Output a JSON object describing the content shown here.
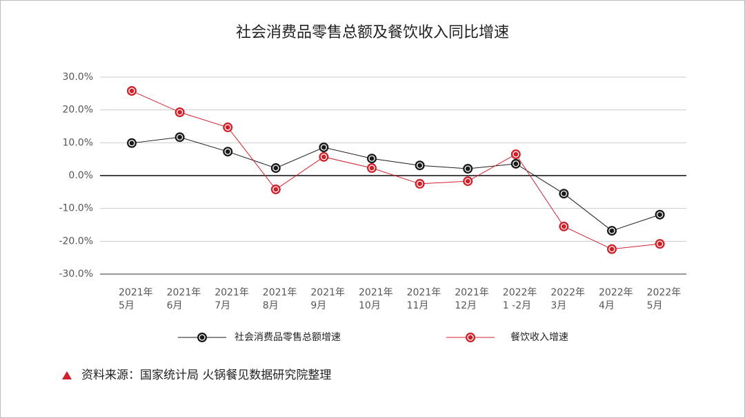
{
  "chart_data": {
    "type": "line",
    "title": "社会消费品零售总额及餐饮收入同比增速",
    "categories": [
      [
        "2021年",
        "5月"
      ],
      [
        "2021年",
        "6月"
      ],
      [
        "2021年",
        "7月"
      ],
      [
        "2021年",
        "8月"
      ],
      [
        "2021年",
        "9月"
      ],
      [
        "2021年",
        "10月"
      ],
      [
        "2021年",
        "11月"
      ],
      [
        "2021年",
        "12月"
      ],
      [
        "2022年",
        "1 -2月"
      ],
      [
        "2022年",
        "3月"
      ],
      [
        "2022年",
        "4月"
      ],
      [
        "2022年",
        "5月"
      ]
    ],
    "series": [
      {
        "name": "社会消费品零售总额增速",
        "color": "#1a1a1a",
        "values": [
          9.9,
          11.7,
          7.3,
          2.3,
          8.6,
          5.2,
          3.1,
          2.1,
          3.6,
          -5.5,
          -16.8,
          -11.9
        ]
      },
      {
        "name": "餐饮收入增速",
        "color": "#d0202a",
        "values": [
          25.8,
          19.3,
          14.7,
          -4.2,
          5.7,
          2.3,
          -2.5,
          -1.7,
          6.5,
          -15.5,
          -22.4,
          -20.8
        ]
      }
    ],
    "ylim": [
      -30,
      30
    ],
    "yticks": [
      {
        "value": -30,
        "label": "-30.0%"
      },
      {
        "value": -20,
        "label": "-20.0%"
      },
      {
        "value": -10,
        "label": "-10.0%"
      },
      {
        "value": 0,
        "label": "0.0%"
      },
      {
        "value": 10,
        "label": "10.0%"
      },
      {
        "value": 20,
        "label": "20.0%"
      },
      {
        "value": 30,
        "label": "30.0%"
      }
    ],
    "grid": true,
    "legend": "bottom",
    "source": "资料来源：国家统计局  火锅餐见数据研究院整理"
  }
}
